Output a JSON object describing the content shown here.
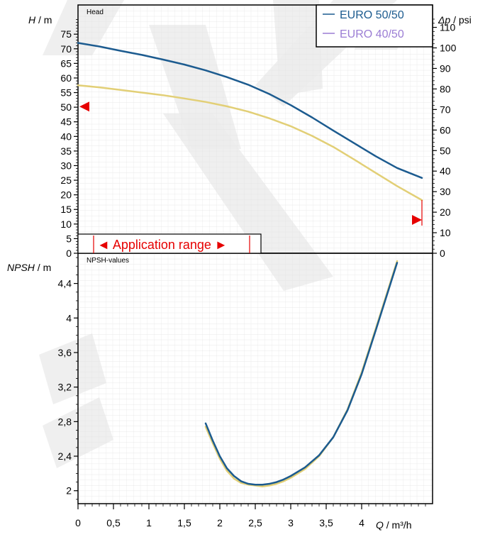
{
  "chart_data": [
    {
      "type": "line",
      "title": "Head",
      "ylabel_var": "H",
      "ylabel_unit": " / m",
      "y2label_var": "Δp",
      "y2label_unit": " / psi",
      "ylim": [
        0,
        85
      ],
      "y2lim": [
        0,
        120.9
      ],
      "yticks": [
        0,
        5,
        10,
        15,
        20,
        25,
        30,
        35,
        40,
        45,
        50,
        55,
        60,
        65,
        70,
        75
      ],
      "y2ticks": [
        0,
        10,
        20,
        30,
        40,
        50,
        60,
        70,
        80,
        90,
        100,
        110
      ],
      "legend_position": "top-right",
      "application_range_label": "◄ Application range ►",
      "application_range_markers": [
        {
          "x": 0,
          "y": 50.2,
          "direction": "left"
        },
        {
          "x": 4.85,
          "y": 11.4,
          "direction": "right"
        }
      ],
      "series": [
        {
          "name": "EURO 50/50",
          "color": "#1c5b8f",
          "points": [
            [
              0,
              72
            ],
            [
              0.3,
              70.8
            ],
            [
              0.6,
              69.3
            ],
            [
              0.9,
              67.9
            ],
            [
              1.2,
              66.3
            ],
            [
              1.5,
              64.6
            ],
            [
              1.8,
              62.6
            ],
            [
              2.1,
              60.3
            ],
            [
              2.4,
              57.7
            ],
            [
              2.7,
              54.5
            ],
            [
              3.0,
              50.7
            ],
            [
              3.3,
              46.5
            ],
            [
              3.6,
              42.0
            ],
            [
              3.9,
              37.6
            ],
            [
              4.2,
              33.2
            ],
            [
              4.5,
              29.2
            ],
            [
              4.85,
              25.8
            ]
          ]
        },
        {
          "name": "EURO 40/50",
          "color": "#e2cf76",
          "legend_color": "#9b7dd4",
          "points": [
            [
              0,
              57.5
            ],
            [
              0.3,
              56.8
            ],
            [
              0.6,
              55.9
            ],
            [
              0.9,
              55.0
            ],
            [
              1.2,
              54.1
            ],
            [
              1.5,
              53.0
            ],
            [
              1.8,
              51.8
            ],
            [
              2.1,
              50.3
            ],
            [
              2.4,
              48.5
            ],
            [
              2.7,
              46.2
            ],
            [
              3.0,
              43.5
            ],
            [
              3.3,
              40.2
            ],
            [
              3.6,
              36.4
            ],
            [
              3.9,
              32.0
            ],
            [
              4.2,
              27.5
            ],
            [
              4.5,
              23.0
            ],
            [
              4.85,
              18.2
            ]
          ]
        }
      ]
    },
    {
      "type": "line",
      "title": "NPSH-values",
      "ylabel_var": "NPSH",
      "ylabel_unit": " / m",
      "xlabel_var": "Q",
      "xlabel_unit": " / m³/h",
      "xlim": [
        0,
        5
      ],
      "ylim": [
        1.85,
        4.75
      ],
      "xticks": [
        "0",
        "0,5",
        "1",
        "1,5",
        "2",
        "2,5",
        "3",
        "3,5",
        "4"
      ],
      "yticks": [
        "2",
        "2,4",
        "2,8",
        "3,2",
        "3,6",
        "4",
        "4,4"
      ],
      "series": [
        {
          "name": "EURO 50/50",
          "color": "#1c5b8f",
          "points": [
            [
              1.8,
              2.78
            ],
            [
              1.9,
              2.58
            ],
            [
              2.0,
              2.4
            ],
            [
              2.1,
              2.26
            ],
            [
              2.2,
              2.17
            ],
            [
              2.3,
              2.11
            ],
            [
              2.4,
              2.08
            ],
            [
              2.5,
              2.07
            ],
            [
              2.6,
              2.07
            ],
            [
              2.7,
              2.08
            ],
            [
              2.8,
              2.1
            ],
            [
              2.9,
              2.13
            ],
            [
              3.0,
              2.17
            ],
            [
              3.2,
              2.27
            ],
            [
              3.4,
              2.41
            ],
            [
              3.6,
              2.62
            ],
            [
              3.8,
              2.93
            ],
            [
              4.0,
              3.35
            ],
            [
              4.2,
              3.86
            ],
            [
              4.4,
              4.38
            ],
            [
              4.5,
              4.64
            ]
          ]
        },
        {
          "name": "EURO 40/50",
          "color": "#e2cf76",
          "points": [
            [
              1.8,
              2.74
            ],
            [
              1.9,
              2.55
            ],
            [
              2.0,
              2.37
            ],
            [
              2.1,
              2.23
            ],
            [
              2.2,
              2.14
            ],
            [
              2.3,
              2.09
            ],
            [
              2.4,
              2.07
            ],
            [
              2.5,
              2.06
            ],
            [
              2.6,
              2.05
            ],
            [
              2.7,
              2.06
            ],
            [
              2.8,
              2.08
            ],
            [
              2.9,
              2.11
            ],
            [
              3.0,
              2.15
            ],
            [
              3.2,
              2.25
            ],
            [
              3.4,
              2.4
            ],
            [
              3.6,
              2.62
            ],
            [
              3.8,
              2.94
            ],
            [
              4.0,
              3.37
            ],
            [
              4.2,
              3.88
            ],
            [
              4.4,
              4.4
            ],
            [
              4.5,
              4.66
            ]
          ]
        }
      ]
    }
  ]
}
